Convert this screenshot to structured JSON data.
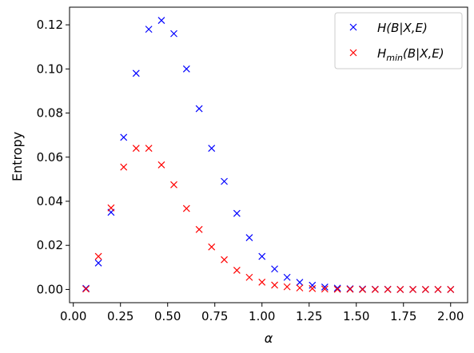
{
  "chart_data": {
    "type": "scatter",
    "title": "",
    "xlabel": "α",
    "ylabel": "Entropy",
    "xlim": [
      -0.02,
      2.09
    ],
    "ylim": [
      -0.006,
      0.128
    ],
    "xticks": [
      "0.00",
      "0.25",
      "0.50",
      "0.75",
      "1.00",
      "1.25",
      "1.50",
      "1.75",
      "2.00"
    ],
    "xtick_values": [
      0,
      0.25,
      0.5,
      0.75,
      1.0,
      1.25,
      1.5,
      1.75,
      2.0
    ],
    "yticks": [
      "0.00",
      "0.02",
      "0.04",
      "0.06",
      "0.08",
      "0.10",
      "0.12"
    ],
    "ytick_values": [
      0,
      0.02,
      0.04,
      0.06,
      0.08,
      0.1,
      0.12
    ],
    "grid": false,
    "legend_position": "top-right",
    "marker": "x",
    "x": [
      0.067,
      0.133,
      0.2,
      0.267,
      0.333,
      0.4,
      0.467,
      0.533,
      0.6,
      0.667,
      0.733,
      0.8,
      0.867,
      0.933,
      1.0,
      1.067,
      1.133,
      1.2,
      1.267,
      1.333,
      1.4,
      1.467,
      1.533,
      1.6,
      1.667,
      1.733,
      1.8,
      1.867,
      1.933,
      2.0
    ],
    "series": [
      {
        "name": "H(B|X,E)",
        "color": "#0000ff",
        "values": [
          0.0005,
          0.012,
          0.035,
          0.069,
          0.098,
          0.118,
          0.122,
          0.116,
          0.1,
          0.082,
          0.064,
          0.049,
          0.0345,
          0.0235,
          0.015,
          0.0093,
          0.0055,
          0.0032,
          0.0019,
          0.0011,
          0.0006,
          0.0003,
          0.0002,
          0.0001,
          0.0001,
          0.0,
          0.0,
          0.0,
          0.0,
          0.0
        ]
      },
      {
        "name": "H_min(B|X,E)",
        "color": "#ff0000",
        "values": [
          0.0002,
          0.015,
          0.037,
          0.0555,
          0.064,
          0.064,
          0.0565,
          0.0475,
          0.0367,
          0.0272,
          0.0193,
          0.0135,
          0.0087,
          0.0055,
          0.0033,
          0.002,
          0.0012,
          0.0007,
          0.0004,
          0.0002,
          0.0001,
          0.0001,
          0.0,
          0.0,
          0.0,
          0.0,
          0.0,
          0.0,
          0.0,
          0.0
        ]
      }
    ]
  },
  "legend": {
    "entry1": {
      "main": "H(B|X,E)"
    },
    "entry2": {
      "main": "H",
      "sub": "min",
      "rest": "(B|X,E)"
    }
  }
}
